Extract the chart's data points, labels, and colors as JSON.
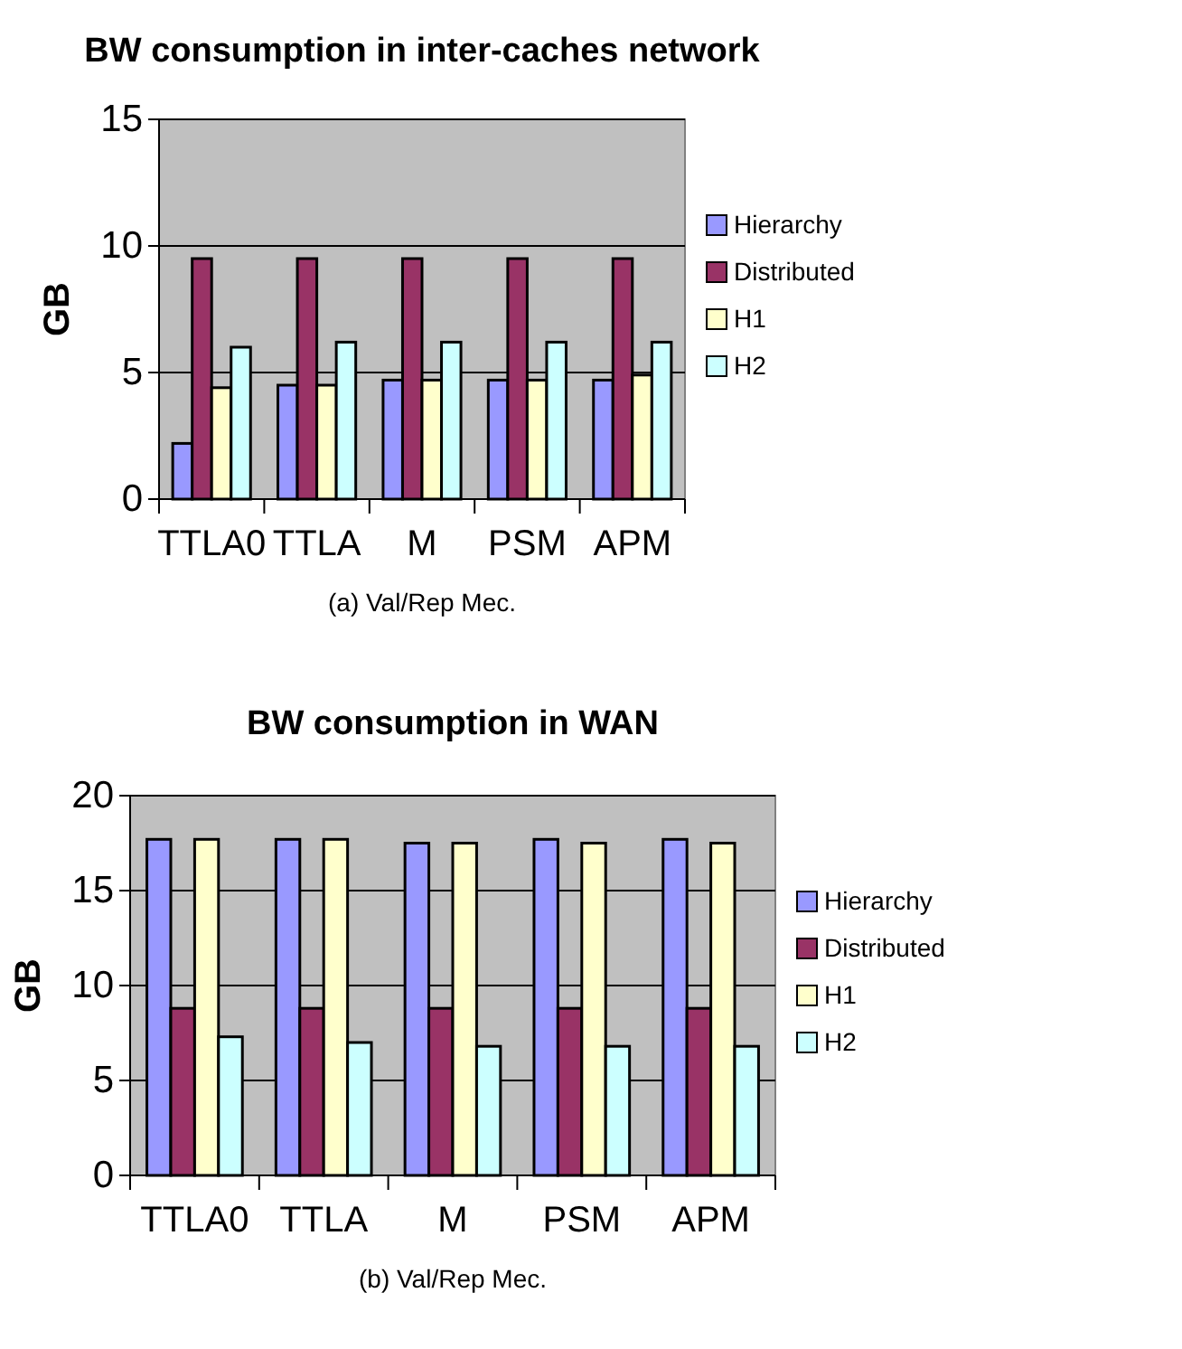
{
  "chart_data": [
    {
      "type": "bar",
      "title": "BW consumption in inter-caches network",
      "xlabel": "(a) Val/Rep Mec.",
      "ylabel": "GB",
      "categories": [
        "TTLA0",
        "TTLA",
        "M",
        "PSM",
        "APM"
      ],
      "series": [
        {
          "name": "Hierarchy",
          "color": "#9999ff",
          "values": [
            2.2,
            4.5,
            4.7,
            4.7,
            4.7
          ]
        },
        {
          "name": "Distributed",
          "color": "#993366",
          "values": [
            9.5,
            9.5,
            9.5,
            9.5,
            9.5
          ]
        },
        {
          "name": "H1",
          "color": "#ffffcc",
          "values": [
            4.4,
            4.5,
            4.7,
            4.7,
            4.9
          ]
        },
        {
          "name": "H2",
          "color": "#ccffff",
          "values": [
            6.0,
            6.2,
            6.2,
            6.2,
            6.2
          ]
        }
      ],
      "ylim": [
        0,
        15
      ],
      "yticks": [
        0,
        5,
        10,
        15
      ],
      "grid": "y",
      "legend": "right"
    },
    {
      "type": "bar",
      "title": "BW consumption in WAN",
      "xlabel": "(b) Val/Rep Mec.",
      "ylabel": "GB",
      "categories": [
        "TTLA0",
        "TTLA",
        "M",
        "PSM",
        "APM"
      ],
      "series": [
        {
          "name": "Hierarchy",
          "color": "#9999ff",
          "values": [
            17.7,
            17.7,
            17.5,
            17.7,
            17.7
          ]
        },
        {
          "name": "Distributed",
          "color": "#993366",
          "values": [
            8.8,
            8.8,
            8.8,
            8.8,
            8.8
          ]
        },
        {
          "name": "H1",
          "color": "#ffffcc",
          "values": [
            17.7,
            17.7,
            17.5,
            17.5,
            17.5
          ]
        },
        {
          "name": "H2",
          "color": "#ccffff",
          "values": [
            7.3,
            7.0,
            6.8,
            6.8,
            6.8
          ]
        }
      ],
      "ylim": [
        0,
        20
      ],
      "yticks": [
        0,
        5,
        10,
        15,
        20
      ],
      "grid": "y",
      "legend": "right"
    }
  ]
}
